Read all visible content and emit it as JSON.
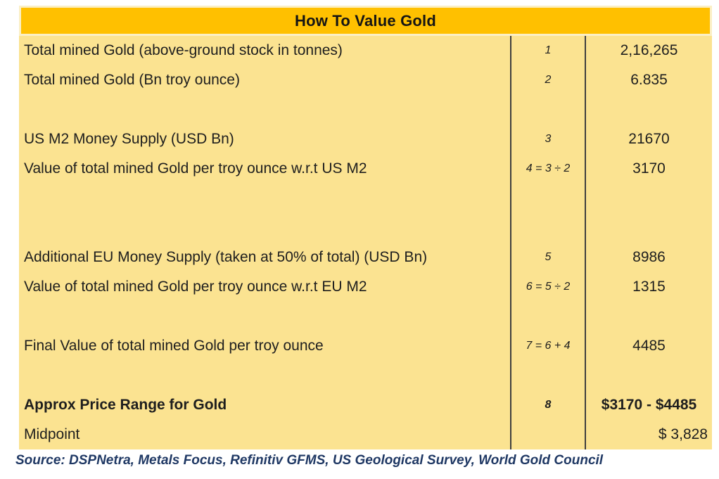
{
  "title": "How To Value Gold",
  "colors": {
    "header_bg": "#FFC000",
    "body_bg": "#FBE391",
    "header_border": "#FBEFC5",
    "divider": "#3F3F3F",
    "text": "#1E1E1E",
    "source_text": "#1F3864"
  },
  "table": {
    "display_rows": [
      {
        "label": "Total mined Gold (above-ground stock in tonnes)",
        "step": "1",
        "value": "2,16,265",
        "bold": false,
        "value_align": "center"
      },
      {
        "label": "Total mined Gold (Bn troy ounce)",
        "step": "2",
        "value": "6.835",
        "bold": false,
        "value_align": "center"
      },
      {
        "label": "",
        "step": "",
        "value": "",
        "bold": false,
        "value_align": "center"
      },
      {
        "label": "US M2 Money Supply (USD Bn)",
        "step": "3",
        "value": "21670",
        "bold": false,
        "value_align": "center"
      },
      {
        "label": "Value of total mined Gold per troy ounce w.r.t US M2",
        "step": "4 = 3 ÷ 2",
        "value": "3170",
        "bold": false,
        "value_align": "center"
      },
      {
        "label": "",
        "step": "",
        "value": "",
        "bold": false,
        "value_align": "center"
      },
      {
        "label": "",
        "step": "",
        "value": "",
        "bold": false,
        "value_align": "center"
      },
      {
        "label": "Additional EU Money Supply (taken at 50% of total) (USD Bn)",
        "step": "5",
        "value": "8986",
        "bold": false,
        "value_align": "center"
      },
      {
        "label": "Value of total mined Gold per troy ounce w.r.t EU M2",
        "step": "6 = 5 ÷ 2",
        "value": "1315",
        "bold": false,
        "value_align": "center"
      },
      {
        "label": "",
        "step": "",
        "value": "",
        "bold": false,
        "value_align": "center"
      },
      {
        "label": "Final Value of total mined Gold per troy ounce",
        "step": "7 = 6 + 4",
        "value": "4485",
        "bold": false,
        "value_align": "center"
      },
      {
        "label": "",
        "step": "",
        "value": "",
        "bold": false,
        "value_align": "center"
      },
      {
        "label": "Approx Price Range for Gold",
        "step": "8",
        "value": "$3170 - $4485",
        "bold": true,
        "value_align": "center"
      },
      {
        "label": "Midpoint",
        "step": "",
        "value": "$ 3,828",
        "bold": false,
        "value_align": "right"
      }
    ]
  },
  "source": "Source: DSPNetra, Metals Focus, Refinitiv GFMS, US Geological Survey, World Gold Council",
  "chart_data": {
    "type": "table",
    "title": "How To Value Gold",
    "columns": [
      "item",
      "step",
      "value"
    ],
    "rows": [
      [
        "Total mined Gold (above-ground stock in tonnes)",
        "1",
        "2,16,265"
      ],
      [
        "Total mined Gold (Bn troy ounce)",
        "2",
        "6.835"
      ],
      [
        "US M2 Money Supply (USD Bn)",
        "3",
        "21670"
      ],
      [
        "Value of total mined Gold per troy ounce w.r.t US M2",
        "4 = 3 ÷ 2",
        "3170"
      ],
      [
        "Additional EU Money Supply (taken at 50% of total) (USD Bn)",
        "5",
        "8986"
      ],
      [
        "Value of total mined Gold per troy ounce w.r.t EU M2",
        "6 = 5 ÷ 2",
        "1315"
      ],
      [
        "Final Value of total mined Gold per troy ounce",
        "7 = 6 + 4",
        "4485"
      ],
      [
        "Approx Price Range for Gold",
        "8",
        "$3170 - $4485"
      ],
      [
        "Midpoint",
        "",
        "$ 3,828"
      ]
    ],
    "source": "Source: DSPNetra, Metals Focus, Refinitiv GFMS, US Geological Survey, World Gold Council",
    "layout_hints": {
      "header_background": "#FFC000",
      "body_background": "#FBE391",
      "number_format_note": "Indian digit grouping on 2,16,265",
      "bold_rows": [
        "Approx Price Range for Gold"
      ],
      "right_aligned_values": [
        "$ 3,828"
      ]
    }
  }
}
